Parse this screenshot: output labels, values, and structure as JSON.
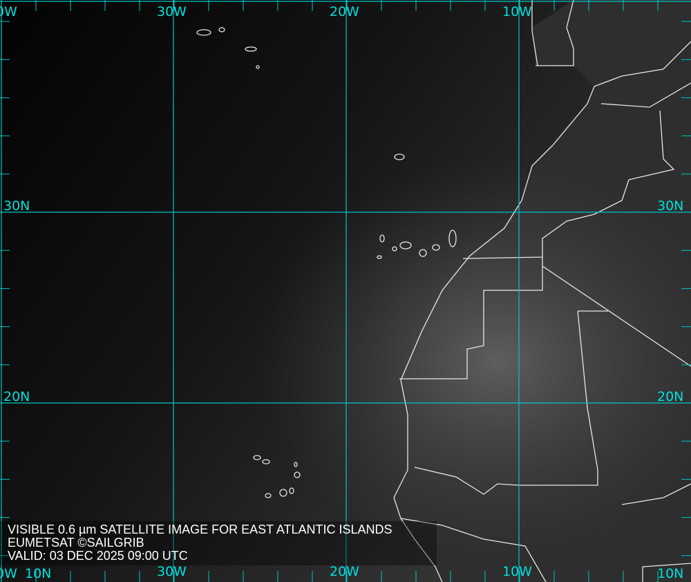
{
  "caption": {
    "line1": "VISIBLE 0.6 µm SATELLITE IMAGE FOR EAST ATLANTIC ISLANDS",
    "line2": "EUMETSAT ©SAILGRIB",
    "line3": "VALID:  03 DEC 2025 09:00 UTC"
  },
  "grid_labels": {
    "top": [
      "0W",
      "30W",
      "20W",
      "10W"
    ],
    "bottom": [
      "0W",
      "30W",
      "20W",
      "10W"
    ],
    "left": [
      "30N",
      "20N",
      "10N"
    ],
    "right": [
      "30N",
      "20N",
      "10N"
    ]
  },
  "colors": {
    "grid": "#00c8c8",
    "label": "#00e0e0",
    "coast": "#e8e8e8",
    "caption": "#ffffff"
  },
  "map": {
    "type": "satellite visible imagery",
    "region": "East Atlantic / NW Africa"
  }
}
